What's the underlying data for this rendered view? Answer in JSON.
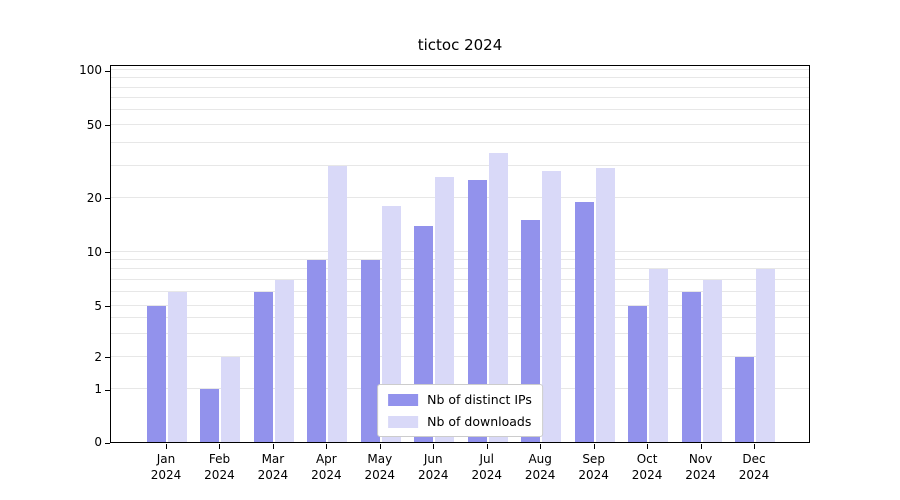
{
  "chart_data": {
    "type": "bar",
    "title": "tictoc 2024",
    "categories": [
      "Jan 2024",
      "Feb 2024",
      "Mar 2024",
      "Apr 2024",
      "May 2024",
      "Jun 2024",
      "Jul 2024",
      "Aug 2024",
      "Sep 2024",
      "Oct 2024",
      "Nov 2024",
      "Dec 2024"
    ],
    "series": [
      {
        "name": "Nb of distinct IPs",
        "color": "#9292ec",
        "values": [
          5,
          1,
          6,
          9,
          9,
          14,
          25,
          15,
          19,
          5,
          6,
          2
        ]
      },
      {
        "name": "Nb of downloads",
        "color": "#d9d9f8",
        "values": [
          6,
          2,
          7,
          30,
          18,
          26,
          35,
          28,
          29,
          8,
          7,
          8
        ]
      }
    ],
    "yticks": [
      0,
      1,
      2,
      5,
      10,
      20,
      50,
      100
    ],
    "ylim": [
      0,
      100
    ],
    "yscale": "symlog",
    "grid": true,
    "legend_position": "lower center"
  }
}
